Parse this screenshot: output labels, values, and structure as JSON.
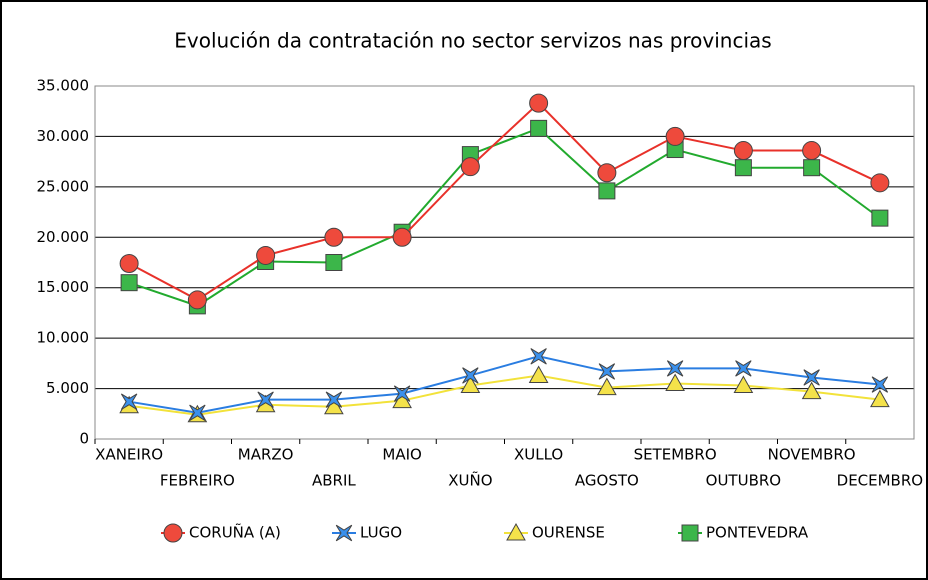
{
  "chart_data": {
    "type": "line",
    "title": "Evolución da contratación no sector servizos nas provincias",
    "categories": [
      "XANEIRO",
      "FEBREIRO",
      "MARZO",
      "ABRIL",
      "MAIO",
      "XUÑO",
      "XULLO",
      "AGOSTO",
      "SETEMBRO",
      "OUTUBRO",
      "NOVEMBRO",
      "DECEMBRO"
    ],
    "series": [
      {
        "name": "CORUÑA (A)",
        "color": "#e8312a",
        "fill": "#ee4a3c",
        "marker": "circle",
        "values": [
          17400,
          13800,
          18200,
          20000,
          20000,
          27000,
          33300,
          26400,
          30000,
          28600,
          28600,
          25400
        ]
      },
      {
        "name": "LUGO",
        "color": "#2a7de1",
        "fill": "#3a90ec",
        "marker": "star",
        "values": [
          3700,
          2600,
          3900,
          3900,
          4500,
          6300,
          8200,
          6700,
          7000,
          7000,
          6100,
          5400
        ]
      },
      {
        "name": "OURENSE",
        "color": "#f2e23a",
        "fill": "#f4e24a",
        "marker": "triangle",
        "values": [
          3300,
          2400,
          3400,
          3200,
          3800,
          5300,
          6300,
          5100,
          5500,
          5300,
          4700,
          3900
        ]
      },
      {
        "name": "PONTEVEDRA",
        "color": "#22aa2e",
        "fill": "#3cb64a",
        "marker": "square",
        "values": [
          15500,
          13200,
          17600,
          17500,
          20500,
          28200,
          30800,
          24600,
          28700,
          26900,
          26900,
          21900
        ]
      }
    ],
    "ylim": [
      0,
      35000
    ],
    "yticks": [
      0,
      {
        "value": 5000,
        "label": "5.000"
      },
      {
        "value": 10000,
        "label": "10.000"
      },
      {
        "value": 15000,
        "label": "15.000"
      },
      {
        "value": 20000,
        "label": "20.000"
      },
      {
        "value": 25000,
        "label": "25.000"
      },
      {
        "value": 30000,
        "label": "30.000"
      },
      {
        "value": 35000,
        "label": "35.000"
      }
    ],
    "grid": true
  }
}
